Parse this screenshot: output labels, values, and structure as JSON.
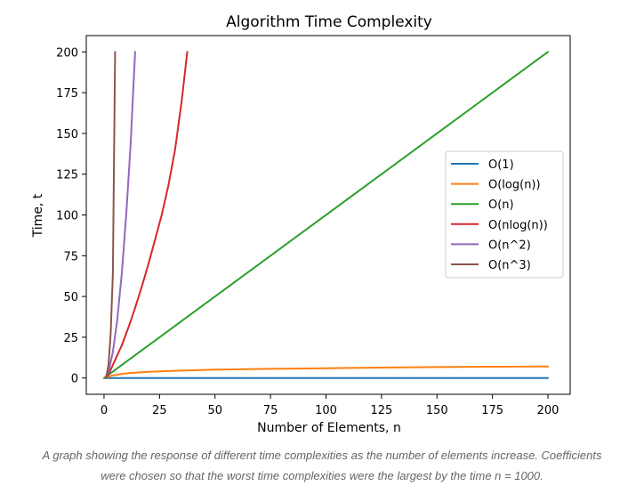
{
  "caption": {
    "line1": "A graph showing the response of different time complexities as the number of elements increase. Coefficients",
    "line2": "were chosen so that the worst time complexities were the largest by the time n = 1000."
  },
  "chart_data": {
    "type": "line",
    "title": "Algorithm Time Complexity",
    "xlabel": "Number of Elements, n",
    "ylabel": "Time, t",
    "xlim": [
      -8,
      210
    ],
    "ylim": [
      -10,
      210
    ],
    "xticks": [
      0,
      25,
      50,
      75,
      100,
      125,
      150,
      175,
      200
    ],
    "yticks": [
      0,
      25,
      50,
      75,
      100,
      125,
      150,
      175,
      200
    ],
    "grid": false,
    "legend_position": "center-right",
    "series": [
      {
        "name": "O(1)",
        "color": "#1f77b4",
        "x": [
          0,
          200
        ],
        "y": [
          0,
          0
        ]
      },
      {
        "name": "O(log(n))",
        "color": "#ff7f0e",
        "x": [
          1,
          2,
          3,
          5,
          8,
          12,
          20,
          30,
          50,
          75,
          100,
          125,
          150,
          175,
          200
        ],
        "y": [
          0,
          0.8,
          1.3,
          1.8,
          2.5,
          3.1,
          3.8,
          4.3,
          5.1,
          5.6,
          6.0,
          6.4,
          6.7,
          6.9,
          7.1
        ]
      },
      {
        "name": "O(n)",
        "color": "#2ca02c",
        "x": [
          0,
          200
        ],
        "y": [
          0,
          200
        ]
      },
      {
        "name": "O(nlog(n))",
        "color": "#d62728",
        "x": [
          1,
          3,
          5,
          8,
          11,
          14,
          17,
          20,
          23,
          26,
          29,
          32,
          35,
          37.5
        ],
        "y": [
          0,
          5,
          11,
          20,
          31,
          43,
          56,
          70,
          85,
          100,
          118,
          140,
          170,
          200
        ]
      },
      {
        "name": "O(n^2)",
        "color": "#9467bd",
        "x": [
          1,
          2,
          4,
          6,
          8,
          10,
          12,
          14
        ],
        "y": [
          1,
          4,
          16,
          36,
          64,
          100,
          144,
          200
        ]
      },
      {
        "name": "O(n^3)",
        "color": "#8c564b",
        "x": [
          1,
          2,
          3,
          4,
          5
        ],
        "y": [
          1,
          8,
          27,
          64,
          200
        ]
      }
    ]
  }
}
